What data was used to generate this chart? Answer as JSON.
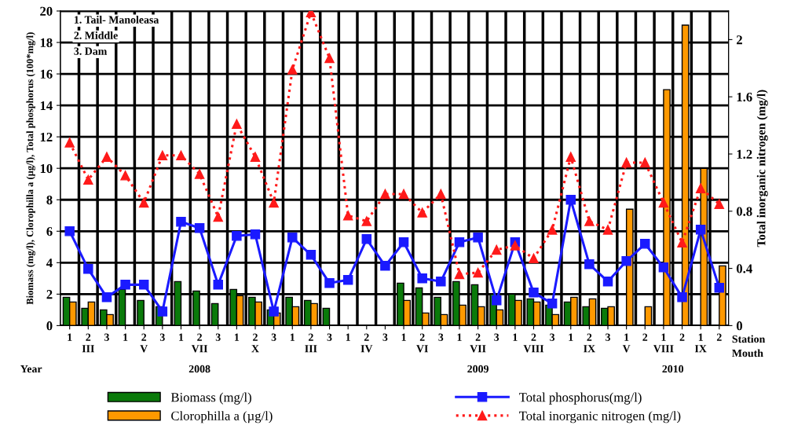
{
  "chart_data": {
    "type": "bar",
    "categories": [
      "1",
      "2\nIII",
      "3",
      "1",
      "2\nV",
      "3",
      "1",
      "2\nVII",
      "3",
      "1",
      "2\nX",
      "3",
      "1",
      "2\nIII",
      "3",
      "1",
      "2\nIV",
      "3",
      "1",
      "2\nVI",
      "3",
      "1",
      "2\nVII",
      "3",
      "1",
      "2\nVIII",
      "3",
      "1",
      "2\nIX",
      "3",
      "1\nV",
      "2",
      "1\nVIII",
      "2",
      "1\nIX",
      "2"
    ],
    "series": [
      {
        "name": "Biomass (mg/l)",
        "color": "#0a7a0a",
        "values": [
          1.8,
          1.1,
          1.0,
          2.3,
          1.6,
          1.2,
          2.8,
          2.2,
          1.4,
          2.3,
          1.8,
          1.0,
          1.8,
          1.6,
          1.1,
          null,
          null,
          null,
          2.7,
          2.4,
          1.8,
          2.8,
          2.6,
          2.0,
          2.0,
          1.7,
          1.3,
          1.5,
          1.2,
          1.1,
          null,
          null,
          null,
          null,
          null,
          null
        ]
      },
      {
        "name": "Clorophilla a (µg/l)",
        "color": "#ff9900",
        "values": [
          1.5,
          1.5,
          0.7,
          null,
          null,
          null,
          null,
          null,
          null,
          1.9,
          1.5,
          0.8,
          1.2,
          1.4,
          null,
          null,
          null,
          null,
          1.6,
          0.8,
          0.7,
          1.3,
          1.2,
          1.0,
          1.6,
          1.5,
          0.7,
          1.8,
          1.7,
          1.2,
          7.4,
          1.2,
          15.0,
          19.1,
          10.0,
          3.8
        ]
      },
      {
        "name": "Total phosphorus(mg/l)",
        "type": "line",
        "color": "#1a1aff",
        "marker": "square",
        "line_style": "solid",
        "values": [
          6.0,
          3.6,
          1.8,
          2.6,
          2.6,
          0.9,
          6.6,
          6.2,
          2.6,
          5.7,
          5.8,
          0.9,
          5.6,
          4.5,
          2.7,
          2.9,
          5.5,
          3.8,
          5.3,
          3.0,
          2.8,
          5.3,
          5.6,
          1.6,
          5.3,
          2.1,
          1.4,
          8.0,
          3.9,
          2.8,
          4.1,
          5.2,
          3.7,
          1.8,
          6.1,
          2.4
        ]
      },
      {
        "name": "Total inorganic nitrogen (mg/l)",
        "type": "line",
        "axis": "y2",
        "color": "#ff1a1a",
        "marker": "triangle",
        "line_style": "dotted",
        "values": [
          1.28,
          1.02,
          1.18,
          1.05,
          0.86,
          1.19,
          1.19,
          1.06,
          0.76,
          1.41,
          1.18,
          0.86,
          1.79,
          2.19,
          1.87,
          0.77,
          0.73,
          0.92,
          0.92,
          0.79,
          0.92,
          0.36,
          0.37,
          0.53,
          0.56,
          0.47,
          0.67,
          1.18,
          0.73,
          0.67,
          1.14,
          1.14,
          0.86,
          0.58,
          0.96,
          0.85
        ]
      }
    ],
    "ylabel": "Biomass (mg/l), Clorophilla a (µg/l), Total phosphorus (100*mg/l)",
    "y2label": "Total inorganic nitrogen (mg/l)",
    "ylim": [
      0,
      20
    ],
    "yticks": [
      0,
      2,
      4,
      6,
      8,
      10,
      12,
      14,
      16,
      18,
      20
    ],
    "y2lim": [
      0,
      2.2
    ],
    "y2ticks": [
      0,
      0.4,
      0.8,
      1.2,
      1.6,
      2
    ],
    "grid": true,
    "legend": "bottom",
    "annotations": [
      "1. Tail- Manoleasa",
      "2. Middle",
      "3. Dam",
      "Station",
      "Mouth",
      "Year",
      "2008",
      "2009",
      "2010"
    ]
  }
}
